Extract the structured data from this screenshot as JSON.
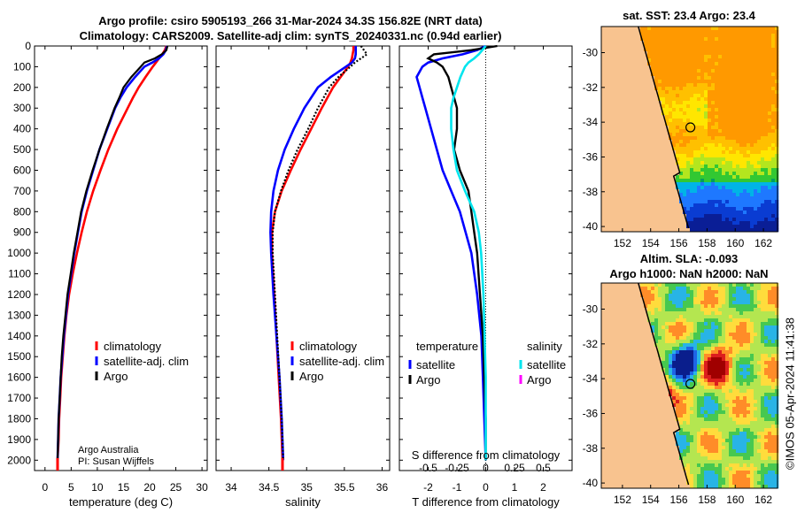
{
  "header": {
    "title_line1": "Argo profile: csiro 5905193_266 31-Mar-2024 34.3S 156.82E (NRT data)",
    "title_line2": "Climatology: CARS2009. Satellite-adj clim: synTS_20240331.nc (0.94d earlier)"
  },
  "credit": {
    "line1": "Argo Australia",
    "line2": "PI: Susan Wijffels"
  },
  "watermark": "©IMOS 05-Apr-2024 11:41:38",
  "colors": {
    "climatology": "#ff0000",
    "satellite": "#0000ff",
    "argo": "#000000",
    "sat_salinity": "#00e5ee",
    "argo_salinity": "#ff00ff",
    "land": "#f8c38f"
  },
  "chart_data": [
    {
      "type": "line",
      "title": "",
      "xlabel": "temperature (deg C)",
      "ylabel": "",
      "xlim": [
        -2,
        31
      ],
      "ylim": [
        2050,
        0
      ],
      "xticks": [
        0,
        5,
        10,
        15,
        20,
        25,
        30
      ],
      "yticks": [
        0,
        100,
        200,
        300,
        400,
        500,
        600,
        700,
        800,
        900,
        1000,
        1100,
        1200,
        1300,
        1400,
        1500,
        1600,
        1700,
        1800,
        1900,
        2000
      ],
      "legend": [
        "climatology",
        "satellite-adj. clim",
        "Argo"
      ],
      "depth": [
        0,
        20,
        40,
        60,
        80,
        100,
        150,
        200,
        250,
        300,
        400,
        500,
        600,
        700,
        800,
        900,
        1000,
        1100,
        1200,
        1300,
        1400,
        1500,
        1600,
        1700,
        1800,
        1900,
        2000
      ],
      "series": [
        {
          "name": "climatology",
          "values": [
            23.2,
            22.9,
            22.4,
            21.8,
            21.2,
            20.6,
            19.2,
            17.9,
            16.8,
            15.8,
            13.8,
            12.1,
            10.6,
            9.2,
            8.0,
            7.0,
            6.1,
            5.3,
            4.6,
            4.1,
            3.7,
            3.4,
            3.1,
            2.9,
            2.7,
            2.6,
            2.4
          ]
        },
        {
          "name": "satellite-adj. clim",
          "values": [
            23.3,
            23.1,
            22.6,
            21.8,
            20.5,
            19.0,
            17.2,
            15.6,
            14.4,
            13.4,
            11.9,
            10.4,
            9.2,
            8.0,
            7.0,
            6.3,
            5.6,
            5.0,
            4.4,
            4.0,
            3.6,
            3.3,
            3.0,
            2.8,
            2.6,
            2.5,
            2.4
          ]
        },
        {
          "name": "Argo",
          "values": [
            23.4,
            23.2,
            22.3,
            21.0,
            19.0,
            18.3,
            16.5,
            15.0,
            14.2,
            13.3,
            11.8,
            10.4,
            9.1,
            7.9,
            6.9,
            6.2,
            5.5,
            4.9,
            4.3,
            3.9,
            3.5,
            3.2,
            3.0,
            2.8,
            2.6,
            2.5,
            2.4
          ]
        }
      ]
    },
    {
      "type": "line",
      "xlabel": "salinity",
      "xlim": [
        33.8,
        36.1
      ],
      "xticks": [
        34,
        34.5,
        35,
        35.5,
        36
      ],
      "legend": [
        "climatology",
        "satellite-adj. clim",
        "Argo"
      ],
      "depth": [
        0,
        20,
        40,
        60,
        80,
        100,
        150,
        200,
        300,
        400,
        500,
        600,
        700,
        800,
        900,
        1000,
        1200,
        1400,
        1600,
        1800,
        2000
      ],
      "series": [
        {
          "name": "climatology",
          "values": [
            35.62,
            35.62,
            35.61,
            35.6,
            35.58,
            35.55,
            35.45,
            35.35,
            35.2,
            35.06,
            34.92,
            34.79,
            34.67,
            34.58,
            34.54,
            34.54,
            34.57,
            34.6,
            34.63,
            34.66,
            34.68
          ]
        },
        {
          "name": "satellite-adj. clim",
          "values": [
            35.65,
            35.65,
            35.65,
            35.64,
            35.6,
            35.52,
            35.32,
            35.15,
            34.97,
            34.83,
            34.71,
            34.62,
            34.56,
            34.53,
            34.52,
            34.53,
            34.56,
            34.6,
            34.64,
            34.67,
            34.69
          ]
        },
        {
          "name": "Argo",
          "values": [
            35.72,
            35.76,
            35.8,
            35.72,
            35.64,
            35.58,
            35.42,
            35.3,
            35.15,
            35.02,
            34.88,
            34.76,
            34.66,
            34.58,
            34.55,
            34.55,
            34.58,
            34.61,
            34.64,
            34.67,
            34.69
          ]
        }
      ]
    },
    {
      "type": "line",
      "xlabel": "T difference from climatology",
      "xlim": [
        -3.0,
        3.0
      ],
      "xticks": [
        -2,
        -1,
        0,
        1,
        2
      ],
      "s_axis": {
        "label": "S difference from climatology",
        "ticks": [
          "-0.5",
          "-0.25",
          "0",
          "0.25",
          "0.5"
        ]
      },
      "legend": {
        "temperature_title": "temperature",
        "salinity_title": "salinity",
        "temp_entries": [
          "satellite",
          "Argo"
        ],
        "sal_entries": [
          "satellite",
          "Argo"
        ]
      },
      "depth": [
        0,
        20,
        40,
        60,
        80,
        100,
        150,
        200,
        250,
        300,
        400,
        500,
        600,
        700,
        800,
        900,
        1000,
        1200,
        1400,
        1600,
        1800,
        2000
      ],
      "series": [
        {
          "name": "temperature satellite",
          "values": [
            0.0,
            -0.3,
            -0.8,
            -1.5,
            -2.0,
            -2.2,
            -2.4,
            -2.3,
            -2.2,
            -2.1,
            -1.9,
            -1.7,
            -1.5,
            -1.2,
            -0.9,
            -0.7,
            -0.5,
            -0.3,
            -0.15,
            -0.1,
            -0.05,
            0.0
          ]
        },
        {
          "name": "temperature Argo",
          "values": [
            0.4,
            -0.5,
            -1.8,
            -2.0,
            -1.7,
            -1.5,
            -1.3,
            -1.2,
            -1.1,
            -1.0,
            -1.0,
            -1.1,
            -0.9,
            -0.6,
            -0.5,
            -0.4,
            -0.3,
            -0.2,
            -0.1,
            -0.05,
            0.0,
            0.0
          ]
        },
        {
          "name": "salinity satellite",
          "values": [
            0.0,
            -0.03,
            -0.06,
            -0.1,
            -0.15,
            -0.18,
            -0.22,
            -0.25,
            -0.28,
            -0.3,
            -0.3,
            -0.28,
            -0.25,
            -0.18,
            -0.1,
            -0.06,
            -0.04,
            -0.02,
            -0.01,
            0.0,
            0.0,
            0.0
          ]
        }
      ]
    },
    {
      "type": "heatmap",
      "title": "sat. SST: 23.4 Argo: 23.4",
      "lon_ticks": [
        152,
        154,
        156,
        158,
        160,
        162
      ],
      "lat_ticks": [
        -30,
        -32,
        -34,
        -36,
        -38,
        -40
      ],
      "xlim": [
        150.5,
        163
      ],
      "ylim": [
        -40.3,
        -28.5
      ],
      "argo_position": [
        156.82,
        -34.3
      ]
    },
    {
      "type": "heatmap",
      "title_line1": "Altim. SLA: -0.093",
      "title_line2": "Argo h1000: NaN h2000: NaN",
      "lon_ticks": [
        152,
        154,
        156,
        158,
        160,
        162
      ],
      "lat_ticks": [
        -30,
        -32,
        -34,
        -36,
        -38,
        -40
      ],
      "xlim": [
        150.5,
        163
      ],
      "ylim": [
        -40.3,
        -28.5
      ],
      "argo_position": [
        156.82,
        -34.3
      ]
    }
  ]
}
